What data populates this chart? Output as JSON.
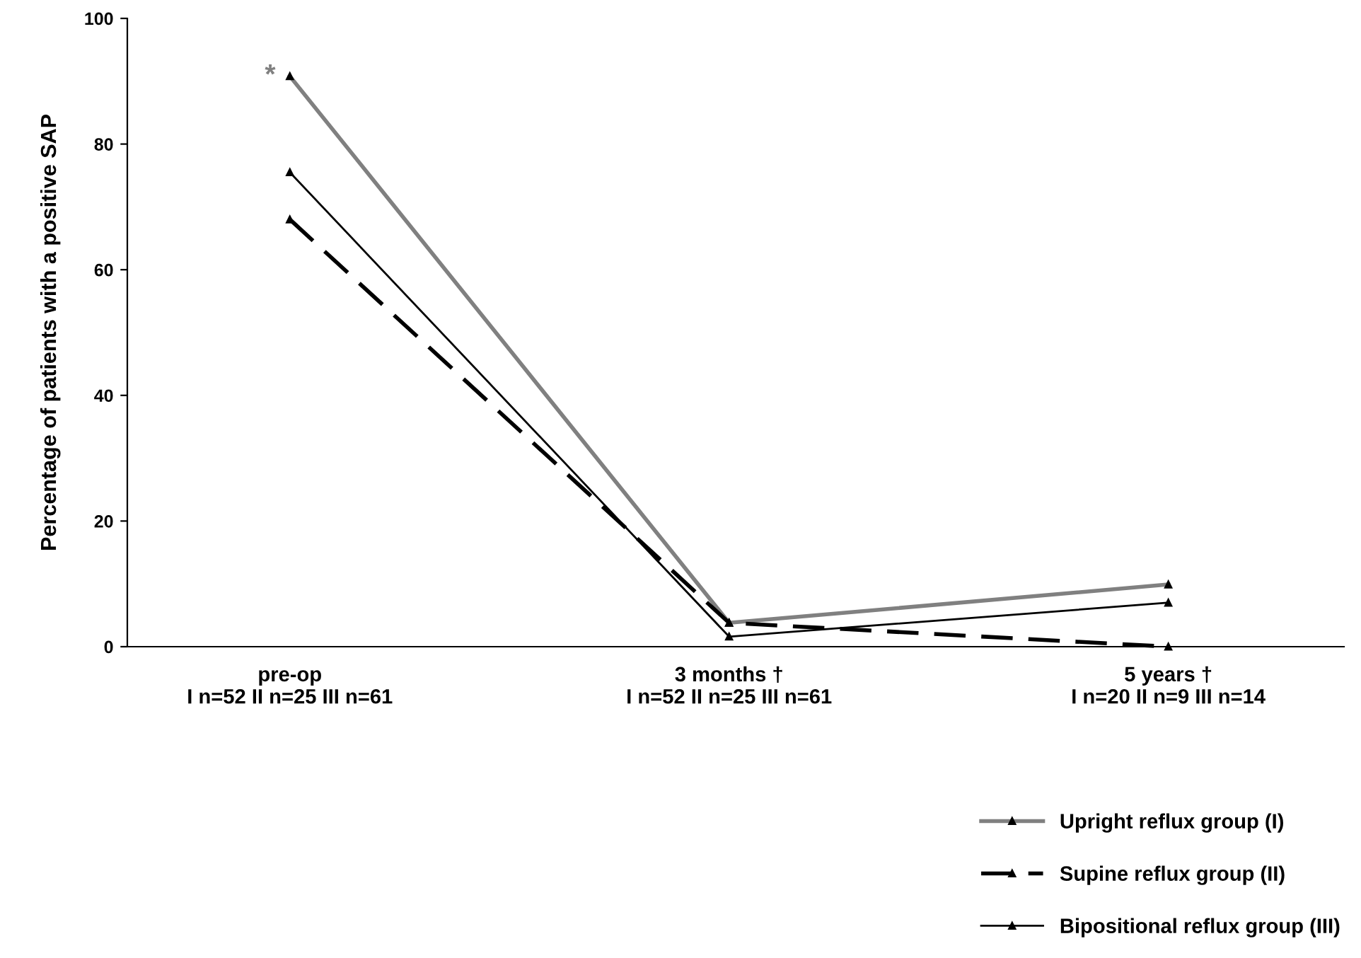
{
  "chart_data": {
    "type": "line",
    "ylabel": "Percentage of patients with a positive SAP",
    "categories": [
      "pre-op\nI n=52 II n=25 III n=61",
      "3 months †\nI n=52 II n=25 III n=61",
      "5 years †\nI n=20 II n=9 III n=14"
    ],
    "series": [
      {
        "name": "Upright reflux group (I)",
        "color": "#808080",
        "values": [
          90.8,
          3.8,
          9.9
        ],
        "line_style": "solid"
      },
      {
        "name": "Supine reflux group (II)",
        "color": "#000000",
        "values": [
          68.0,
          3.8,
          0
        ],
        "line_style": "dashed"
      },
      {
        "name": "Bipositional reflux group (III)",
        "color": "#000000",
        "values": [
          75.5,
          1.6,
          7.0
        ],
        "line_style": "solid"
      }
    ],
    "ylim": [
      0,
      100
    ],
    "yticks": [
      0,
      20,
      40,
      60,
      80,
      100
    ],
    "grid": false,
    "legend": "bottom right",
    "marker": "triangle",
    "annotations": [
      {
        "text": "*",
        "x": "pre-op\nI n=52 II n=25 III n=61",
        "y": 90.8
      }
    ]
  }
}
